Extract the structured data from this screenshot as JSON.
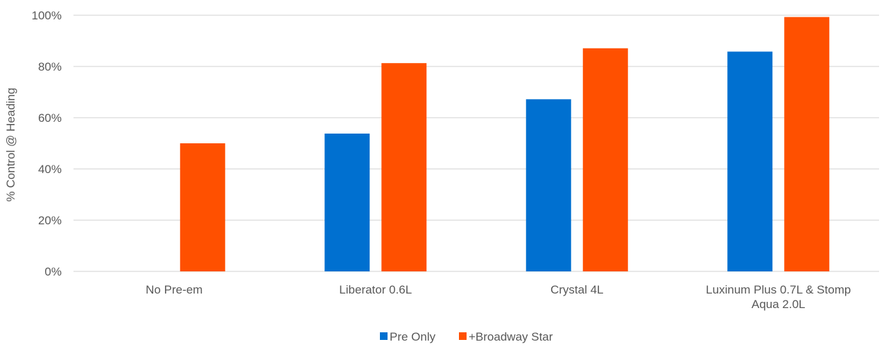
{
  "chart_data": {
    "type": "bar",
    "ylabel": "% Control @ Heading",
    "xlabel": "",
    "title": "",
    "categories": [
      [
        "No Pre-em"
      ],
      [
        "Liberator 0.6L"
      ],
      [
        "Crystal 4L"
      ],
      [
        "Luxinum Plus 0.7L & Stomp",
        "Aqua 2.0L"
      ]
    ],
    "series": [
      {
        "name": "Pre Only",
        "color": "#0070D0",
        "values": [
          null,
          53.8,
          67.2,
          85.8
        ]
      },
      {
        "name": "+Broadway Star",
        "color": "#FF5000",
        "values": [
          50.0,
          81.3,
          87.1,
          99.3
        ]
      }
    ],
    "ylim": [
      0,
      100
    ],
    "yticks": [
      0,
      20,
      40,
      60,
      80,
      100
    ],
    "ytick_labels": [
      "0%",
      "20%",
      "40%",
      "60%",
      "80%",
      "100%"
    ],
    "grid": true,
    "legend": "bottom-center",
    "gridline_color": "#D9D9D9",
    "text_color": "#595959"
  }
}
